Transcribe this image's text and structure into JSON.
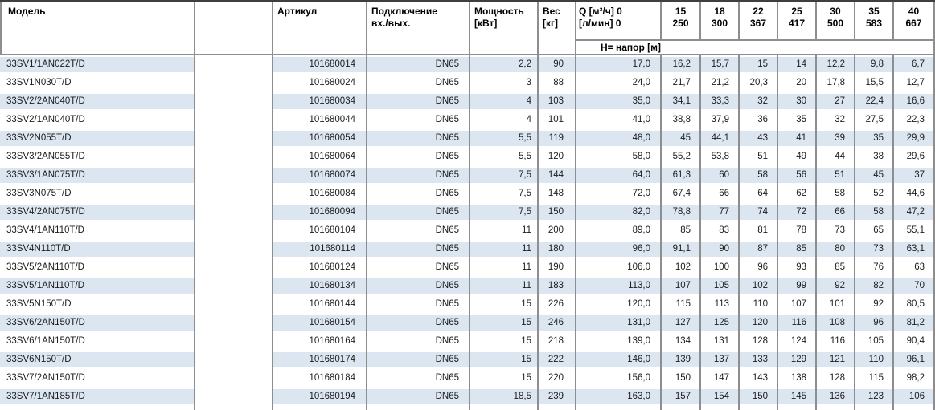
{
  "table": {
    "headers": {
      "model": "Модель",
      "spacer": "",
      "article": "Артикул",
      "connection": [
        "Подключение",
        "вх./вых."
      ],
      "power": [
        "Мощность",
        "[кВт]"
      ],
      "weight": [
        "Вес",
        "[кг]"
      ],
      "q": [
        "Q [м³/ч] 0",
        "[л/мин] 0"
      ],
      "flows": [
        {
          "m3h": "15",
          "lmin": "250"
        },
        {
          "m3h": "18",
          "lmin": "300"
        },
        {
          "m3h": "22",
          "lmin": "367"
        },
        {
          "m3h": "25",
          "lmin": "417"
        },
        {
          "m3h": "30",
          "lmin": "500"
        },
        {
          "m3h": "35",
          "lmin": "583"
        },
        {
          "m3h": "40",
          "lmin": "667"
        }
      ],
      "head_row_label": "H= напор [м]"
    },
    "rows": [
      {
        "model": "33SV1/1AN022T/D",
        "article": "101680014",
        "connection": "DN65",
        "power": "2,2",
        "weight": "90",
        "q0": "17,0",
        "h": [
          "16,2",
          "15,7",
          "15",
          "14",
          "12,2",
          "9,8",
          "6,7"
        ]
      },
      {
        "model": "33SV1N030T/D",
        "article": "101680024",
        "connection": "DN65",
        "power": "3",
        "weight": "88",
        "q0": "24,0",
        "h": [
          "21,7",
          "21,2",
          "20,3",
          "20",
          "17,8",
          "15,5",
          "12,7"
        ]
      },
      {
        "model": "33SV2/2AN040T/D",
        "article": "101680034",
        "connection": "DN65",
        "power": "4",
        "weight": "103",
        "q0": "35,0",
        "h": [
          "34,1",
          "33,3",
          "32",
          "30",
          "27",
          "22,4",
          "16,6"
        ]
      },
      {
        "model": "33SV2/1AN040T/D",
        "article": "101680044",
        "connection": "DN65",
        "power": "4",
        "weight": "101",
        "q0": "41,0",
        "h": [
          "38,8",
          "37,9",
          "36",
          "35",
          "32",
          "27,5",
          "22,3"
        ]
      },
      {
        "model": "33SV2N055T/D",
        "article": "101680054",
        "connection": "DN65",
        "power": "5,5",
        "weight": "119",
        "q0": "48,0",
        "h": [
          "45",
          "44,1",
          "43",
          "41",
          "39",
          "35",
          "29,9"
        ]
      },
      {
        "model": "33SV3/2AN055T/D",
        "article": "101680064",
        "connection": "DN65",
        "power": "5,5",
        "weight": "120",
        "q0": "58,0",
        "h": [
          "55,2",
          "53,8",
          "51",
          "49",
          "44",
          "38",
          "29,6"
        ]
      },
      {
        "model": "33SV3/1AN075T/D",
        "article": "101680074",
        "connection": "DN65",
        "power": "7,5",
        "weight": "144",
        "q0": "64,0",
        "h": [
          "61,3",
          "60",
          "58",
          "56",
          "51",
          "45",
          "37"
        ]
      },
      {
        "model": "33SV3N075T/D",
        "article": "101680084",
        "connection": "DN65",
        "power": "7,5",
        "weight": "148",
        "q0": "72,0",
        "h": [
          "67,4",
          "66",
          "64",
          "62",
          "58",
          "52",
          "44,6"
        ]
      },
      {
        "model": "33SV4/2AN075T/D",
        "article": "101680094",
        "connection": "DN65",
        "power": "7,5",
        "weight": "150",
        "q0": "82,0",
        "h": [
          "78,8",
          "77",
          "74",
          "72",
          "66",
          "58",
          "47,2"
        ]
      },
      {
        "model": "33SV4/1AN110T/D",
        "article": "101680104",
        "connection": "DN65",
        "power": "11",
        "weight": "200",
        "q0": "89,0",
        "h": [
          "85",
          "83",
          "81",
          "78",
          "73",
          "65",
          "55,1"
        ]
      },
      {
        "model": "33SV4N110T/D",
        "article": "101680114",
        "connection": "DN65",
        "power": "11",
        "weight": "180",
        "q0": "96,0",
        "h": [
          "91,1",
          "90",
          "87",
          "85",
          "80",
          "73",
          "63,1"
        ]
      },
      {
        "model": "33SV5/2AN110T/D",
        "article": "101680124",
        "connection": "DN65",
        "power": "11",
        "weight": "190",
        "q0": "106,0",
        "h": [
          "102",
          "100",
          "96",
          "93",
          "85",
          "76",
          "63"
        ]
      },
      {
        "model": "33SV5/1AN110T/D",
        "article": "101680134",
        "connection": "DN65",
        "power": "11",
        "weight": "183",
        "q0": "113,0",
        "h": [
          "107",
          "105",
          "102",
          "99",
          "92",
          "82",
          "70"
        ]
      },
      {
        "model": "33SV5N150T/D",
        "article": "101680144",
        "connection": "DN65",
        "power": "15",
        "weight": "226",
        "q0": "120,0",
        "h": [
          "115",
          "113",
          "110",
          "107",
          "101",
          "92",
          "80,5"
        ]
      },
      {
        "model": "33SV6/2AN150T/D",
        "article": "101680154",
        "connection": "DN65",
        "power": "15",
        "weight": "246",
        "q0": "131,0",
        "h": [
          "127",
          "125",
          "120",
          "116",
          "108",
          "96",
          "81,2"
        ]
      },
      {
        "model": "33SV6/1AN150T/D",
        "article": "101680164",
        "connection": "DN65",
        "power": "15",
        "weight": "218",
        "q0": "139,0",
        "h": [
          "134",
          "131",
          "128",
          "124",
          "116",
          "105",
          "90,4"
        ]
      },
      {
        "model": "33SV6N150T/D",
        "article": "101680174",
        "connection": "DN65",
        "power": "15",
        "weight": "222",
        "q0": "146,0",
        "h": [
          "139",
          "137",
          "133",
          "129",
          "121",
          "110",
          "96,1"
        ]
      },
      {
        "model": "33SV7/2AN150T/D",
        "article": "101680184",
        "connection": "DN65",
        "power": "15",
        "weight": "220",
        "q0": "156,0",
        "h": [
          "150",
          "147",
          "143",
          "138",
          "128",
          "115",
          "98,2"
        ]
      },
      {
        "model": "33SV7/1AN185T/D",
        "article": "101680194",
        "connection": "DN65",
        "power": "18,5",
        "weight": "239",
        "q0": "163,0",
        "h": [
          "157",
          "154",
          "150",
          "145",
          "136",
          "123",
          "106"
        ]
      }
    ]
  },
  "colors": {
    "stripe_blue": "#dce6f0",
    "grid_gray": "#8e8e8e",
    "top_border_dark": "#3f3f3f",
    "text": "#1c1c1c"
  }
}
